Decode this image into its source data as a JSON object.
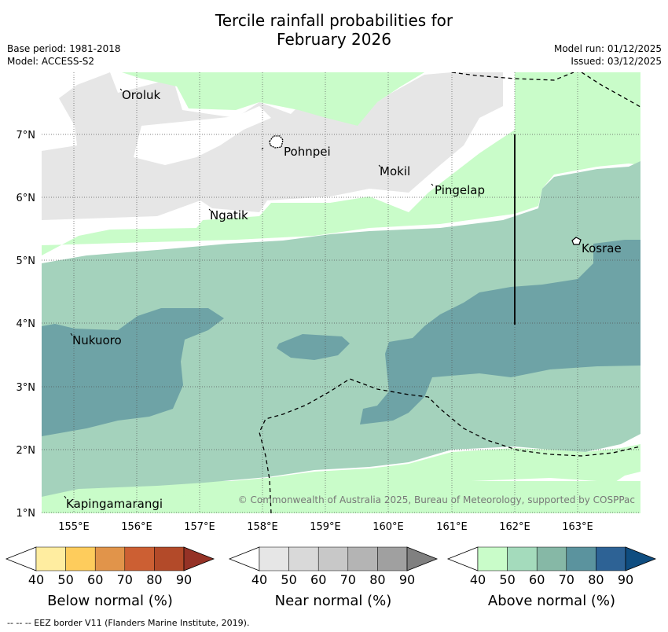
{
  "title": {
    "line1": "Tercile rainfall probabilities for",
    "line2": "February 2026"
  },
  "meta": {
    "base_period": "Base period: 1981-2018",
    "model": "Model: ACCESS-S2",
    "model_run": "Model run: 01/12/2025",
    "issued": "Issued: 03/12/2025"
  },
  "map": {
    "lat_labels": [
      "7°N",
      "6°N",
      "5°N",
      "4°N",
      "3°N",
      "2°N",
      "1°N"
    ],
    "lon_labels": [
      "155°E",
      "156°E",
      "157°E",
      "158°E",
      "159°E",
      "160°E",
      "161°E",
      "162°E",
      "163°E"
    ],
    "places": {
      "oroluk": "Oroluk",
      "pohnpei": "Pohnpei",
      "mokil": "Mokil",
      "pingelap": "Pingelap",
      "ngatik": "Ngatik",
      "kosrae": "Kosrae",
      "nukuoro": "Nukuoro",
      "kapingamarangi": "Kapingamarangi"
    },
    "copyright": "© Commonwealth of Australia 2025, Bureau of Meteorology, supported by COSPPac"
  },
  "colorbars": [
    {
      "label": "Below normal (%)",
      "ticks": [
        "40",
        "50",
        "60",
        "70",
        "80",
        "90"
      ],
      "colors": [
        "#ffffff",
        "#ffeda0",
        "#fecc5c",
        "#e1944a",
        "#cc5f33",
        "#b34a29",
        "#953226"
      ]
    },
    {
      "label": "Near normal (%)",
      "ticks": [
        "40",
        "50",
        "60",
        "70",
        "80",
        "90"
      ],
      "colors": [
        "#ffffff",
        "#e6e6e6",
        "#d9d9d9",
        "#c8c8c8",
        "#b4b4b4",
        "#a0a0a0",
        "#808080"
      ]
    },
    {
      "label": "Above normal (%)",
      "ticks": [
        "40",
        "50",
        "60",
        "70",
        "80",
        "90"
      ],
      "colors": [
        "#ffffff",
        "#c9fcc9",
        "#a4dbbc",
        "#86b8a6",
        "#5b939e",
        "#2d6295",
        "#0f4d80"
      ]
    }
  ],
  "footer": "--  --  -- EEZ border V11 (Flanders Marine Institute, 2019)."
}
